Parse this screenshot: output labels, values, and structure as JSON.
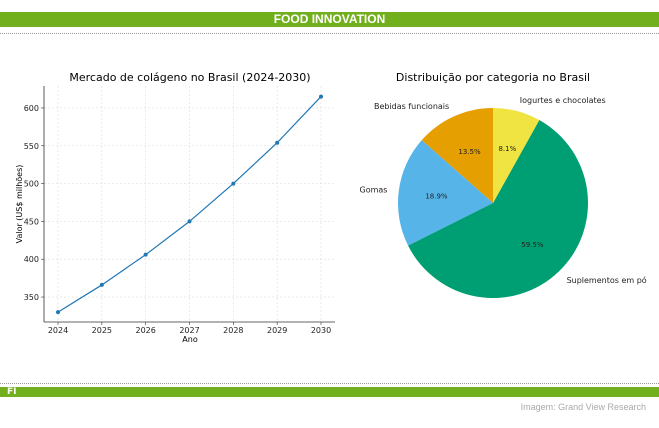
{
  "header": {
    "title": "FOOD INNOVATION"
  },
  "footer": {
    "logo": "FI",
    "credit": "Imagem: Grand View Research"
  },
  "chart_data": [
    {
      "type": "line",
      "title": "Mercado de colágeno no Brasil (2024-2030)",
      "xlabel": "Ano",
      "ylabel": "Valor (US$ milhões)",
      "x": [
        "2024",
        "2025",
        "2026",
        "2027",
        "2028",
        "2029",
        "2030"
      ],
      "values": [
        330,
        366,
        406,
        450,
        500,
        554,
        615
      ],
      "yticks": [
        "350",
        "400",
        "450",
        "500",
        "550",
        "600"
      ],
      "ylim": [
        317,
        629
      ],
      "grid": true,
      "color": "#1f77b4"
    },
    {
      "type": "pie",
      "title": "Distribuição por categoria no Brasil",
      "slices": [
        {
          "label": "Bebidas funcionais",
          "value": 13.5,
          "pct": "13.5%",
          "color": "#E69F00"
        },
        {
          "label": "Gomas",
          "value": 18.9,
          "pct": "18.9%",
          "color": "#56B4E9"
        },
        {
          "label": "Suplementos em pó",
          "value": 59.5,
          "pct": "59.5%",
          "color": "#009E73"
        },
        {
          "label": "Iogurtes e chocolates",
          "value": 8.1,
          "pct": "8.1%",
          "color": "#F0E442"
        }
      ]
    }
  ]
}
